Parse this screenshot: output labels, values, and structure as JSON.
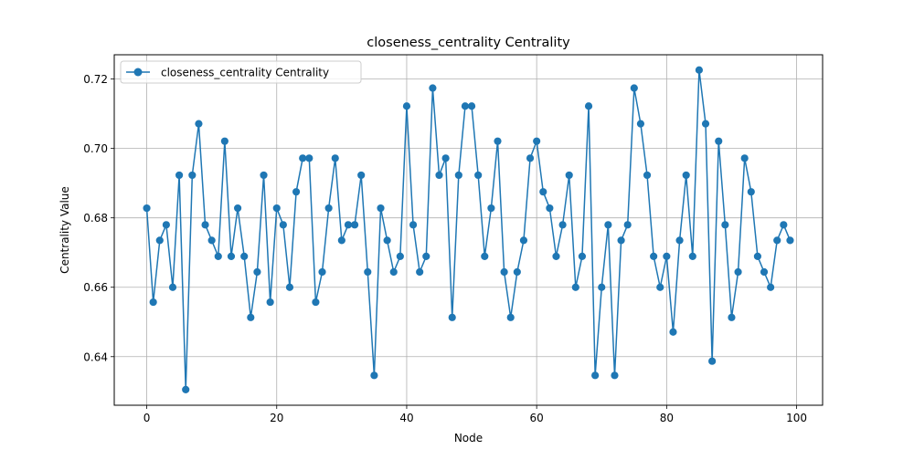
{
  "chart_data": {
    "type": "line",
    "title": "closeness_centrality Centrality",
    "xlabel": "Node",
    "ylabel": "Centrality Value",
    "xlim": [
      -5,
      104
    ],
    "ylim": [
      0.626,
      0.727
    ],
    "grid": true,
    "legend_placement": "top-left",
    "x_ticks": [
      0,
      20,
      40,
      60,
      80,
      100
    ],
    "x_tick_labels": [
      "0",
      "20",
      "40",
      "60",
      "80",
      "100"
    ],
    "y_ticks": [
      0.64,
      0.66,
      0.68,
      0.7,
      0.72
    ],
    "y_tick_labels": [
      "0.64",
      "0.66",
      "0.68",
      "0.70",
      "0.72"
    ],
    "series": [
      {
        "name": "closeness_centrality Centrality",
        "color": "#1f77b4",
        "marker": "circle",
        "x": [
          0,
          1,
          2,
          3,
          4,
          5,
          6,
          7,
          8,
          9,
          10,
          11,
          12,
          13,
          14,
          15,
          16,
          17,
          18,
          19,
          20,
          21,
          22,
          23,
          24,
          25,
          26,
          27,
          28,
          29,
          30,
          31,
          32,
          33,
          34,
          35,
          36,
          37,
          38,
          39,
          40,
          41,
          42,
          43,
          44,
          45,
          46,
          47,
          48,
          49,
          50,
          51,
          52,
          53,
          54,
          55,
          56,
          57,
          58,
          59,
          60,
          61,
          62,
          63,
          64,
          65,
          66,
          67,
          68,
          69,
          70,
          71,
          72,
          73,
          74,
          75,
          76,
          77,
          78,
          79,
          80,
          81,
          82,
          83,
          84,
          85,
          86,
          87,
          88,
          89,
          90,
          91,
          92,
          93,
          94,
          95,
          96,
          97,
          98,
          99
        ],
        "values": [
          0.6828,
          0.6557,
          0.6735,
          0.678,
          0.66,
          0.6923,
          0.6305,
          0.6923,
          0.7071,
          0.678,
          0.6735,
          0.6689,
          0.7021,
          0.6689,
          0.6828,
          0.6689,
          0.6513,
          0.6644,
          0.6923,
          0.6557,
          0.6828,
          0.678,
          0.66,
          0.6875,
          0.6972,
          0.6972,
          0.6557,
          0.6644,
          0.6828,
          0.6972,
          0.6735,
          0.678,
          0.678,
          0.6923,
          0.6644,
          0.6346,
          0.6828,
          0.6735,
          0.6644,
          0.6689,
          0.7122,
          0.678,
          0.6644,
          0.6689,
          0.7174,
          0.6923,
          0.6972,
          0.6513,
          0.6923,
          0.7122,
          0.7122,
          0.6923,
          0.6689,
          0.6828,
          0.7021,
          0.6644,
          0.6513,
          0.6644,
          0.6735,
          0.6972,
          0.7021,
          0.6875,
          0.6828,
          0.6689,
          0.678,
          0.6923,
          0.66,
          0.6689,
          0.7122,
          0.6346,
          0.66,
          0.678,
          0.6346,
          0.6735,
          0.678,
          0.7174,
          0.7071,
          0.6923,
          0.6689,
          0.66,
          0.6689,
          0.6471,
          0.6735,
          0.6923,
          0.6689,
          0.7226,
          0.7071,
          0.6387,
          0.7021,
          0.678,
          0.6513,
          0.6644,
          0.6972,
          0.6875,
          0.6689,
          0.6644,
          0.66,
          0.6735,
          0.678,
          0.6735
        ]
      }
    ]
  }
}
